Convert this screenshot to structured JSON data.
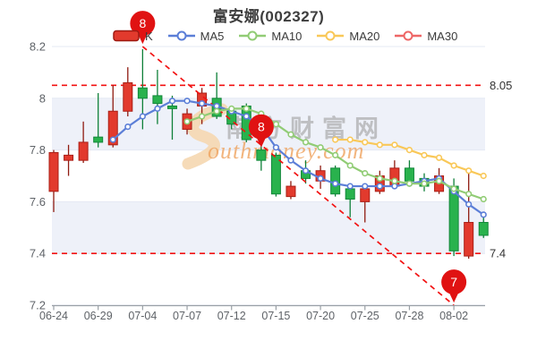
{
  "title": {
    "text": "富安娜(002327)"
  },
  "legend": {
    "items": [
      {
        "label": "K",
        "marker": "candlestick",
        "color": "#e23a2d",
        "border": "#9e1a12"
      },
      {
        "label": "MA5",
        "marker": "line",
        "color": "#5b7ed7"
      },
      {
        "label": "MA10",
        "marker": "line",
        "color": "#91cc75"
      },
      {
        "label": "MA20",
        "marker": "line",
        "color": "#f9c858"
      },
      {
        "label": "MA30",
        "marker": "line",
        "color": "#ee6666"
      }
    ]
  },
  "watermark": {
    "text_cn": "南方财富网",
    "text_en": "outhmoney.com"
  },
  "colors": {
    "up_fill": "#e23a2d",
    "up_border": "#aa1f16",
    "up_wick": "#8f1b10",
    "down_fill": "#29b24d",
    "down_border": "#12873a",
    "down_wick": "#0e8038",
    "ma5": "#5b7ed7",
    "ma10": "#91cc75",
    "ma20": "#f9c858",
    "ma30": "#ee6666",
    "ref_line": "#f21212",
    "trend_line": "#f21212",
    "balloon": "#e01212",
    "grid_line": "#e4e9f3",
    "band": "#eef1f9",
    "axis_line": "#9aa0a6",
    "tick_label": "#5f6368",
    "ref_label": "#333333",
    "watermark_gray": "#9f9f9f",
    "watermark_orange": "#efa35f",
    "watermark_swoosh": "#f5d7b0"
  },
  "chart_data": {
    "type": "candlestick",
    "title": "富安娜(002327)",
    "legend_position": "top",
    "grid": true,
    "y_axis": {
      "min": 7.2,
      "max": 8.2,
      "ticks": [
        {
          "value": 8.2,
          "label": "8.2"
        },
        {
          "value": 8.0,
          "label": "8"
        },
        {
          "value": 7.8,
          "label": "7.8"
        },
        {
          "value": 7.6,
          "label": "7.6"
        },
        {
          "value": 7.4,
          "label": "7.4"
        },
        {
          "value": 7.2,
          "label": "7.2"
        }
      ],
      "shaded_bands": [
        [
          8.0,
          7.8
        ],
        [
          7.6,
          7.4
        ]
      ]
    },
    "x_ticks": [
      {
        "index": 0,
        "label": "06-24"
      },
      {
        "index": 3,
        "label": "06-29"
      },
      {
        "index": 6,
        "label": "07-04"
      },
      {
        "index": 9,
        "label": "07-07"
      },
      {
        "index": 12,
        "label": "07-12"
      },
      {
        "index": 15,
        "label": "07-15"
      },
      {
        "index": 18,
        "label": "07-20"
      },
      {
        "index": 21,
        "label": "07-25"
      },
      {
        "index": 24,
        "label": "07-28"
      },
      {
        "index": 27,
        "label": "08-02"
      }
    ],
    "candles": [
      {
        "date": "06-24",
        "open": 7.64,
        "close": 7.79,
        "low": 7.56,
        "high": 7.8
      },
      {
        "date": "06-27",
        "open": 7.76,
        "close": 7.78,
        "low": 7.7,
        "high": 7.82
      },
      {
        "date": "06-28",
        "open": 7.76,
        "close": 7.83,
        "low": 7.75,
        "high": 7.91
      },
      {
        "date": "06-29",
        "open": 7.85,
        "close": 7.83,
        "low": 7.81,
        "high": 8.02
      },
      {
        "date": "06-30",
        "open": 7.82,
        "close": 7.95,
        "low": 7.81,
        "high": 8.05
      },
      {
        "date": "07-01",
        "open": 7.95,
        "close": 8.06,
        "low": 7.93,
        "high": 8.12
      },
      {
        "date": "07-04",
        "open": 8.04,
        "close": 8.0,
        "low": 7.88,
        "high": 8.19
      },
      {
        "date": "07-05",
        "open": 8.01,
        "close": 7.98,
        "low": 7.9,
        "high": 8.11
      },
      {
        "date": "07-06",
        "open": 7.97,
        "close": 7.96,
        "low": 7.84,
        "high": 8.01
      },
      {
        "date": "07-07",
        "open": 7.88,
        "close": 7.94,
        "low": 7.86,
        "high": 7.96
      },
      {
        "date": "07-08",
        "open": 7.97,
        "close": 8.02,
        "low": 7.9,
        "high": 8.04
      },
      {
        "date": "07-11",
        "open": 8.0,
        "close": 7.93,
        "low": 7.92,
        "high": 8.1
      },
      {
        "date": "07-12",
        "open": 7.95,
        "close": 7.9,
        "low": 7.88,
        "high": 7.97
      },
      {
        "date": "07-13",
        "open": 7.97,
        "close": 7.84,
        "low": 7.83,
        "high": 7.98
      },
      {
        "date": "07-14",
        "open": 7.8,
        "close": 7.76,
        "low": 7.72,
        "high": 7.82
      },
      {
        "date": "07-15",
        "open": 7.78,
        "close": 7.63,
        "low": 7.62,
        "high": 7.79
      },
      {
        "date": "07-18",
        "open": 7.62,
        "close": 7.66,
        "low": 7.61,
        "high": 7.68
      },
      {
        "date": "07-19",
        "open": 7.72,
        "close": 7.69,
        "low": 7.67,
        "high": 7.76
      },
      {
        "date": "07-20",
        "open": 7.68,
        "close": 7.72,
        "low": 7.65,
        "high": 7.74
      },
      {
        "date": "07-21",
        "open": 7.73,
        "close": 7.63,
        "low": 7.62,
        "high": 7.74
      },
      {
        "date": "07-22",
        "open": 7.65,
        "close": 7.61,
        "low": 7.54,
        "high": 7.66
      },
      {
        "date": "07-25",
        "open": 7.6,
        "close": 7.65,
        "low": 7.52,
        "high": 7.66
      },
      {
        "date": "07-26",
        "open": 7.64,
        "close": 7.7,
        "low": 7.63,
        "high": 7.72
      },
      {
        "date": "07-27",
        "open": 7.66,
        "close": 7.73,
        "low": 7.65,
        "high": 7.76
      },
      {
        "date": "07-28",
        "open": 7.73,
        "close": 7.68,
        "low": 7.66,
        "high": 7.76
      },
      {
        "date": "07-29",
        "open": 7.69,
        "close": 7.66,
        "low": 7.64,
        "high": 7.71
      },
      {
        "date": "08-01",
        "open": 7.64,
        "close": 7.7,
        "low": 7.63,
        "high": 7.73
      },
      {
        "date": "08-02",
        "open": 7.66,
        "close": 7.41,
        "low": 7.39,
        "high": 7.69
      },
      {
        "date": "08-03",
        "open": 7.39,
        "close": 7.52,
        "low": 7.38,
        "high": 7.73
      },
      {
        "date": "08-04",
        "open": 7.52,
        "close": 7.47,
        "low": 7.46,
        "high": 7.55
      }
    ],
    "ma_series": [
      {
        "name": "MA5",
        "color": "#5b7ed7",
        "start_index": 4,
        "values": [
          7.84,
          7.89,
          7.93,
          7.96,
          7.99,
          7.99,
          7.98,
          7.97,
          7.95,
          7.93,
          7.89,
          7.81,
          7.76,
          7.72,
          7.69,
          7.67,
          7.66,
          7.66,
          7.66,
          7.66,
          7.67,
          7.68,
          7.69,
          7.64,
          7.59,
          7.55
        ]
      },
      {
        "name": "MA10",
        "color": "#91cc75",
        "start_index": 9,
        "values": [
          7.91,
          7.93,
          7.95,
          7.96,
          7.96,
          7.94,
          7.9,
          7.86,
          7.83,
          7.81,
          7.78,
          7.74,
          7.71,
          7.69,
          7.68,
          7.67,
          7.67,
          7.68,
          7.65,
          7.63,
          7.61
        ]
      },
      {
        "name": "MA20",
        "color": "#f9c858",
        "start_index": 19,
        "values": [
          7.84,
          7.84,
          7.83,
          7.82,
          7.82,
          7.8,
          7.78,
          7.77,
          7.74,
          7.72,
          7.7
        ]
      }
    ],
    "reference_lines": [
      {
        "value": 8.05,
        "label": "8.05"
      },
      {
        "value": 7.4,
        "label": "7.4"
      }
    ],
    "trend_line": {
      "from_index": 6,
      "from_value": 8.2,
      "to_index": 27,
      "to_value": 7.2
    },
    "balloons": [
      {
        "label": "8",
        "index": 6,
        "anchor_value": 8.21
      },
      {
        "label": "8",
        "index": 14,
        "anchor_value": 7.81
      },
      {
        "label": "7",
        "index": 27,
        "anchor_value": 7.21
      }
    ]
  }
}
